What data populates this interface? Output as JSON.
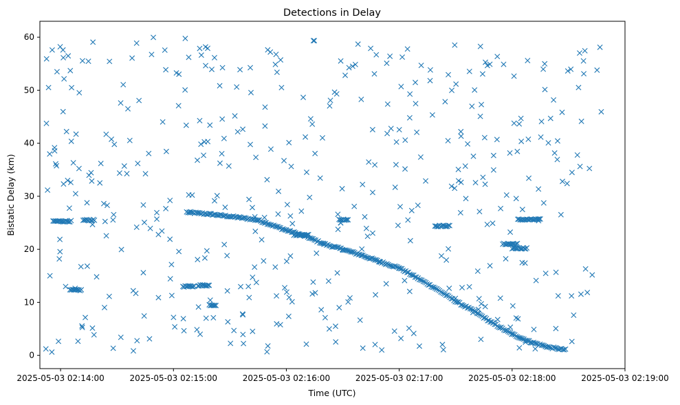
{
  "chart_data": {
    "type": "scatter",
    "title": "Detections in Delay",
    "xlabel": "Time (UTC)",
    "ylabel": "Bistatic Delay (km)",
    "x_axis_kind": "datetime",
    "x_range": [
      "2025-05-03 02:13:49",
      "2025-05-03 02:19:00"
    ],
    "ylim": [
      -2.5,
      63
    ],
    "x_ticks": [
      {
        "t": "2025-05-03 02:14:00",
        "label": "2025-05-03 02:14:00"
      },
      {
        "t": "2025-05-03 02:15:00",
        "label": "2025-05-03 02:15:00"
      },
      {
        "t": "2025-05-03 02:16:00",
        "label": "2025-05-03 02:16:00"
      },
      {
        "t": "2025-05-03 02:17:00",
        "label": "2025-05-03 02:17:00"
      },
      {
        "t": "2025-05-03 02:18:00",
        "label": "2025-05-03 02:18:00"
      },
      {
        "t": "2025-05-03 02:19:00",
        "label": "2025-05-03 02:19:00"
      }
    ],
    "y_ticks": [
      0,
      10,
      20,
      30,
      40,
      50,
      60
    ],
    "grid": false,
    "marker": "x",
    "marker_color": "#1f77b4",
    "track": [
      {
        "t": "2025-05-03 02:15:07",
        "y": 27.0
      },
      {
        "t": "2025-05-03 02:15:20",
        "y": 26.6
      },
      {
        "t": "2025-05-03 02:15:35",
        "y": 26.0
      },
      {
        "t": "2025-05-03 02:15:45",
        "y": 25.5
      },
      {
        "t": "2025-05-03 02:16:00",
        "y": 23.6
      },
      {
        "t": "2025-05-03 02:16:10",
        "y": 22.5
      },
      {
        "t": "2025-05-03 02:16:20",
        "y": 21.0
      },
      {
        "t": "2025-05-03 02:16:30",
        "y": 20.0
      },
      {
        "t": "2025-05-03 02:16:40",
        "y": 18.9
      },
      {
        "t": "2025-05-03 02:16:50",
        "y": 17.6
      },
      {
        "t": "2025-05-03 02:17:00",
        "y": 16.5
      },
      {
        "t": "2025-05-03 02:17:10",
        "y": 14.5
      },
      {
        "t": "2025-05-03 02:17:20",
        "y": 12.5
      },
      {
        "t": "2025-05-03 02:17:30",
        "y": 10.2
      },
      {
        "t": "2025-05-03 02:17:40",
        "y": 8.3
      },
      {
        "t": "2025-05-03 02:17:50",
        "y": 6.0
      },
      {
        "t": "2025-05-03 02:18:00",
        "y": 4.0
      },
      {
        "t": "2025-05-03 02:18:10",
        "y": 2.5
      },
      {
        "t": "2025-05-03 02:18:20",
        "y": 1.5
      },
      {
        "t": "2025-05-03 02:18:29",
        "y": 1.0
      }
    ],
    "clusters": [
      {
        "t": "2025-05-03 02:13:56",
        "y": 25.3,
        "span_s": 10
      },
      {
        "t": "2025-05-03 02:14:05",
        "y": 12.3,
        "span_s": 6
      },
      {
        "t": "2025-05-03 02:14:12",
        "y": 25.5,
        "span_s": 6
      },
      {
        "t": "2025-05-03 02:15:05",
        "y": 13.0,
        "span_s": 6
      },
      {
        "t": "2025-05-03 02:15:13",
        "y": 13.2,
        "span_s": 6
      },
      {
        "t": "2025-05-03 02:15:19",
        "y": 9.5,
        "span_s": 4
      },
      {
        "t": "2025-05-03 02:16:04",
        "y": 22.7,
        "span_s": 8
      },
      {
        "t": "2025-05-03 02:16:28",
        "y": 25.6,
        "span_s": 5
      },
      {
        "t": "2025-05-03 02:17:19",
        "y": 24.4,
        "span_s": 8
      },
      {
        "t": "2025-05-03 02:17:55",
        "y": 21.0,
        "span_s": 8
      },
      {
        "t": "2025-05-03 02:18:03",
        "y": 25.6,
        "span_s": 12
      },
      {
        "t": "2025-05-03 02:18:00",
        "y": 20.2,
        "span_s": 8
      }
    ],
    "noise_range": {
      "t_start": "2025-05-03 02:13:52",
      "t_end": "2025-05-03 02:18:48",
      "y_min": 0.5,
      "y_max": 60
    }
  }
}
